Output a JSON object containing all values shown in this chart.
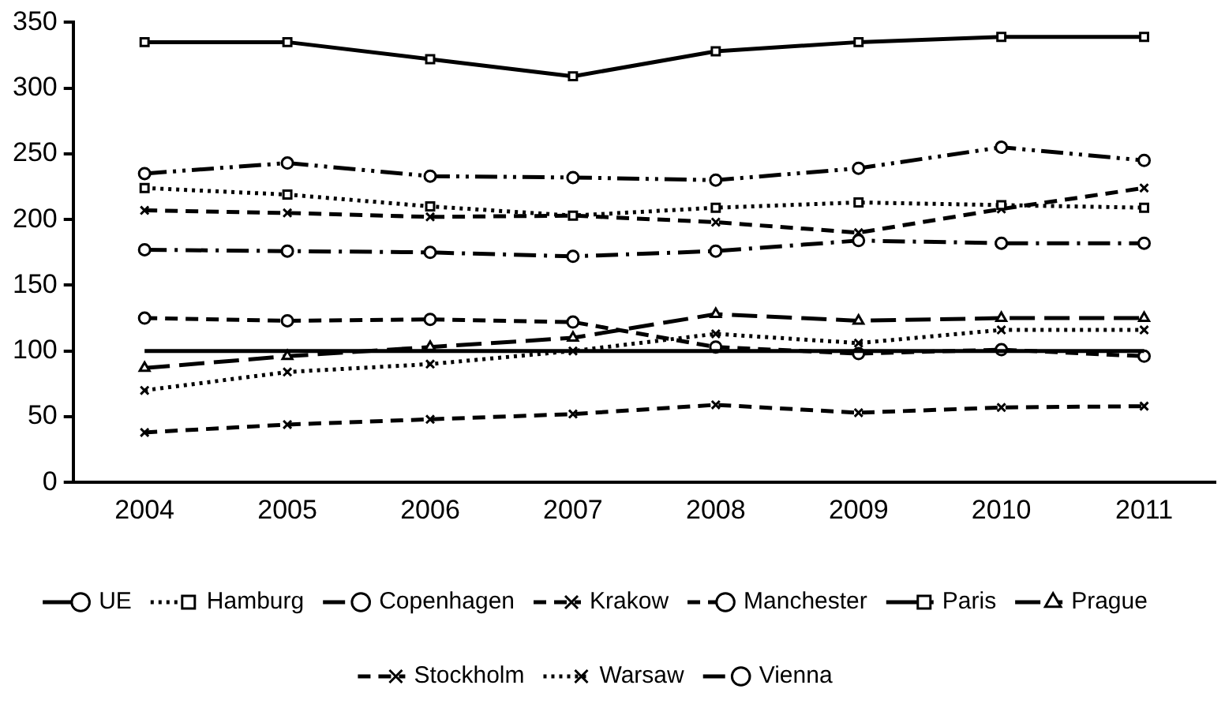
{
  "chart_data": {
    "type": "line",
    "categories": [
      "2004",
      "2005",
      "2006",
      "2007",
      "2008",
      "2009",
      "2010",
      "2011"
    ],
    "ylim": [
      0,
      350
    ],
    "yticks": [
      0,
      50,
      100,
      150,
      200,
      250,
      300,
      350
    ],
    "grid": false,
    "legend": "bottom",
    "series": [
      {
        "name": "UE",
        "color": "#000000",
        "line_style": "solid",
        "marker": "none",
        "values": [
          100,
          100,
          100,
          100,
          100,
          100,
          100,
          100
        ]
      },
      {
        "name": "Hamburg",
        "color": "#000000",
        "line_style": "dotted",
        "marker": "square",
        "values": [
          224,
          219,
          210,
          203,
          209,
          213,
          211,
          209
        ]
      },
      {
        "name": "Copenhagen",
        "color": "#000000",
        "line_style": "dashdotdot",
        "marker": "circle",
        "values": [
          235,
          243,
          233,
          232,
          230,
          239,
          255,
          245
        ]
      },
      {
        "name": "Krakow",
        "color": "#000000",
        "line_style": "dashed",
        "marker": "cross",
        "values": [
          38,
          44,
          48,
          52,
          59,
          53,
          57,
          58
        ]
      },
      {
        "name": "Manchester",
        "color": "#000000",
        "line_style": "dashed",
        "marker": "circle",
        "values": [
          125,
          123,
          124,
          122,
          103,
          98,
          101,
          96
        ]
      },
      {
        "name": "Paris",
        "color": "#000000",
        "line_style": "solid",
        "marker": "square",
        "values": [
          335,
          335,
          322,
          309,
          328,
          335,
          339,
          339
        ]
      },
      {
        "name": "Prague",
        "color": "#000000",
        "line_style": "longdash",
        "marker": "triangle",
        "values": [
          87,
          96,
          103,
          110,
          128,
          123,
          125,
          125
        ]
      },
      {
        "name": "Stockholm",
        "color": "#000000",
        "line_style": "dashed",
        "marker": "cross",
        "values": [
          207,
          205,
          202,
          203,
          198,
          190,
          208,
          224
        ]
      },
      {
        "name": "Warsaw",
        "color": "#000000",
        "line_style": "dotted",
        "marker": "cross",
        "values": [
          70,
          84,
          90,
          100,
          113,
          106,
          116,
          116
        ]
      },
      {
        "name": "Vienna",
        "color": "#000000",
        "line_style": "dashdot",
        "marker": "circle",
        "values": [
          177,
          176,
          175,
          172,
          176,
          184,
          182,
          182
        ]
      }
    ]
  }
}
